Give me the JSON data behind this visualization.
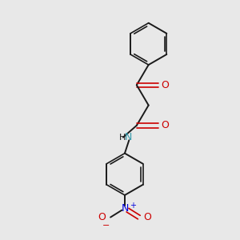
{
  "background_color": "#e8e8e8",
  "bond_color": "#1a1a1a",
  "oxygen_color": "#cc0000",
  "nitrogen_color": "#3399aa",
  "nitrogen_color2": "#0000dd",
  "figsize": [
    3.0,
    3.0
  ],
  "dpi": 100,
  "xlim": [
    0,
    10
  ],
  "ylim": [
    0,
    10
  ]
}
